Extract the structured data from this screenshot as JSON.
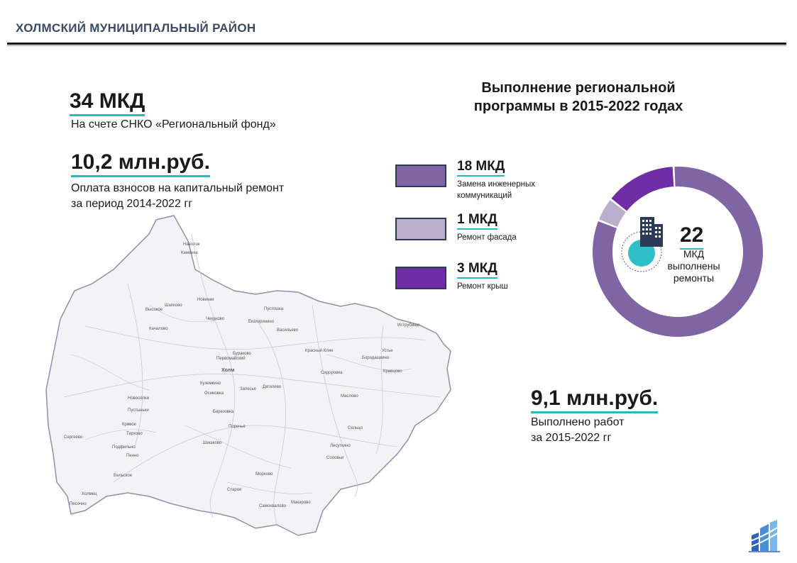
{
  "header": {
    "title": "ХОЛМСКИЙ МУНИЦИПАЛЬНЫЙ РАЙОН"
  },
  "stats": {
    "mkd_count": "34 МКД",
    "mkd_desc": "На счете СНКО «Региональный фонд»",
    "payments": "10,2 млн.руб.",
    "payments_desc_line1": "Оплата взносов на капитальный ремонт",
    "payments_desc_line2": "за период 2014-2022 гг",
    "works": "9,1 млн.руб.",
    "works_desc_line1": "Выполнено работ",
    "works_desc_line2": "за 2015-2022 гг"
  },
  "program": {
    "title_line1": "Выполнение региональной",
    "title_line2": "программы в 2015-2022 годах"
  },
  "legend": [
    {
      "value": "18 МКД",
      "label_line1": "Замена инженерных",
      "label_line2": "коммуникаций",
      "color": "#7f65a4"
    },
    {
      "value": "1 МКД",
      "label_line1": "Ремонт фасада",
      "label_line2": "",
      "color": "#b9afcc"
    },
    {
      "value": "3 МКД",
      "label_line1": "Ремонт крыш",
      "label_line2": "",
      "color": "#6f2ea6"
    }
  ],
  "chart_data": {
    "type": "pie",
    "categories": [
      "Замена инженерных коммуникаций",
      "Ремонт фасада",
      "Ремонт крыш"
    ],
    "values": [
      18,
      1,
      3
    ],
    "colors": [
      "#7f65a4",
      "#b9afcc",
      "#6f2ea6"
    ],
    "center_value": "22",
    "center_label_line1": "МКД",
    "center_label_line2": "выполнены",
    "center_label_line3": "ремонты"
  },
  "map": {
    "places": [
      "Наволок",
      "Каменка",
      "Новинки",
      "Шапково",
      "Высокое",
      "Чекуново",
      "Пустошка",
      "Качалово",
      "Екатерининo",
      "Васильево",
      "Первомайский",
      "Бураково",
      "Иструбище",
      "Красный Клин",
      "Холм",
      "Устье",
      "Бородашкино",
      "Сидоровка",
      "Куземкино",
      "Осиновка",
      "Запесье",
      "Дягилево",
      "Кривцово",
      "Маслово",
      "Новосёлки",
      "Березовка",
      "Пустыньки",
      "Кривое",
      "Тархово",
      "Поречье",
      "Подфильно",
      "Пенно",
      "Соловьи",
      "Лесуткино",
      "Сельцо",
      "Морхово",
      "Старое",
      "Бельское",
      "Шишково",
      "Макарово",
      "Холмец",
      "Песочно",
      "Сергеево",
      "Самохвалово"
    ]
  }
}
